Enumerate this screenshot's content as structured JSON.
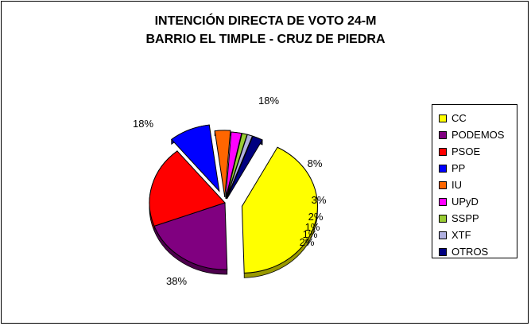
{
  "chart_data": {
    "type": "pie",
    "title": "INTENCIÓN DIRECTA DE VOTO 24-M",
    "subtitle": "BARRIO EL TIMPLE - CRUZ DE PIEDRA",
    "legend_position": "right",
    "slices": [
      {
        "name": "CC",
        "value": 38,
        "label": "38%",
        "color": "#ffff00"
      },
      {
        "name": "PODEMOS",
        "value": 18,
        "label": "18%",
        "color": "#800080"
      },
      {
        "name": "PSOE",
        "value": 18,
        "label": "18%",
        "color": "#ff0000"
      },
      {
        "name": "PP",
        "value": 8,
        "label": "8%",
        "color": "#0000ff"
      },
      {
        "name": "IU",
        "value": 3,
        "label": "3%",
        "color": "#ff6600"
      },
      {
        "name": "UPyD",
        "value": 2,
        "label": "2%",
        "color": "#ff00ff"
      },
      {
        "name": "SSPP",
        "value": 1,
        "label": "1%",
        "color": "#99cc33"
      },
      {
        "name": "XTF",
        "value": 1,
        "label": "1%",
        "color": "#b0b0e0"
      },
      {
        "name": "OTROS",
        "value": 2,
        "label": "2%",
        "color": "#000080"
      }
    ]
  }
}
